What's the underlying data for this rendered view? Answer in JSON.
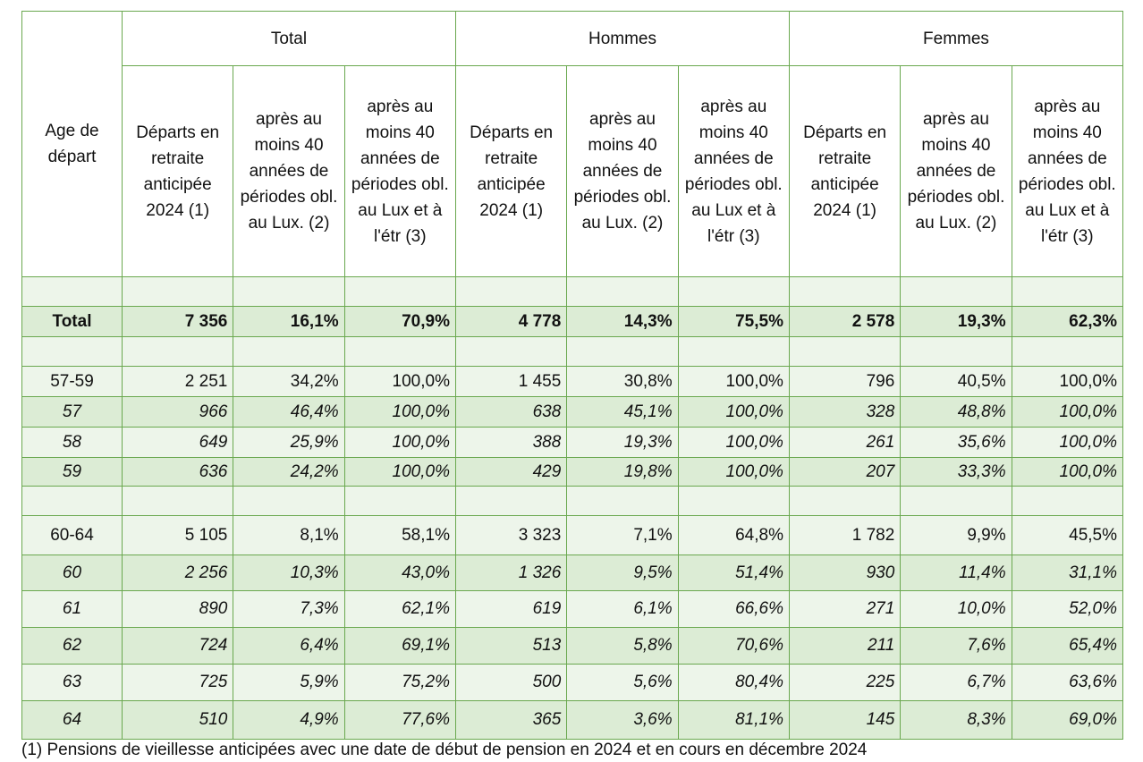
{
  "table": {
    "corner": "Age de départ",
    "groups": [
      "Total",
      "Hommes",
      "Femmes"
    ],
    "subheaders": [
      "Départs en retraite anticipée 2024 (1)",
      "après au moins 40 années de périodes obl. au Lux. (2)",
      "après au moins 40 années de périodes obl. au Lux et à l'étr (3)",
      "Départs en retraite anticipée 2024 (1)",
      "après au moins 40 années de périodes obl. au Lux. (2)",
      "après au moins 40 années de périodes obl. au Lux et à l'étr (3)",
      "Départs en retraite anticipée 2024 (1)",
      "après au moins 40 années de périodes obl. au Lux. (2)",
      "après au moins 40 années de périodes obl. au Lux et à l'étr (3)"
    ],
    "rows": [
      [
        "Total",
        "7 356",
        "16,1%",
        "70,9%",
        "4 778",
        "14,3%",
        "75,5%",
        "2 578",
        "19,3%",
        "62,3%"
      ],
      [
        "57-59",
        "2 251",
        "34,2%",
        "100,0%",
        "1 455",
        "30,8%",
        "100,0%",
        "796",
        "40,5%",
        "100,0%"
      ],
      [
        "57",
        "966",
        "46,4%",
        "100,0%",
        "638",
        "45,1%",
        "100,0%",
        "328",
        "48,8%",
        "100,0%"
      ],
      [
        "58",
        "649",
        "25,9%",
        "100,0%",
        "388",
        "19,3%",
        "100,0%",
        "261",
        "35,6%",
        "100,0%"
      ],
      [
        "59",
        "636",
        "24,2%",
        "100,0%",
        "429",
        "19,8%",
        "100,0%",
        "207",
        "33,3%",
        "100,0%"
      ],
      [
        "60-64",
        "5 105",
        "8,1%",
        "58,1%",
        "3 323",
        "7,1%",
        "64,8%",
        "1 782",
        "9,9%",
        "45,5%"
      ],
      [
        "60",
        "2 256",
        "10,3%",
        "43,0%",
        "1 326",
        "9,5%",
        "51,4%",
        "930",
        "11,4%",
        "31,1%"
      ],
      [
        "61",
        "890",
        "7,3%",
        "62,1%",
        "619",
        "6,1%",
        "66,6%",
        "271",
        "10,0%",
        "52,0%"
      ],
      [
        "62",
        "724",
        "6,4%",
        "69,1%",
        "513",
        "5,8%",
        "70,6%",
        "211",
        "7,6%",
        "65,4%"
      ],
      [
        "63",
        "725",
        "5,9%",
        "75,2%",
        "500",
        "5,6%",
        "80,4%",
        "225",
        "6,7%",
        "63,6%"
      ],
      [
        "64",
        "510",
        "4,9%",
        "77,6%",
        "365",
        "3,6%",
        "81,1%",
        "145",
        "8,3%",
        "69,0%"
      ]
    ]
  },
  "footnote": "(1) Pensions de vieillesse anticipées avec une date de début de pension en 2024 et en cours en décembre 2024"
}
